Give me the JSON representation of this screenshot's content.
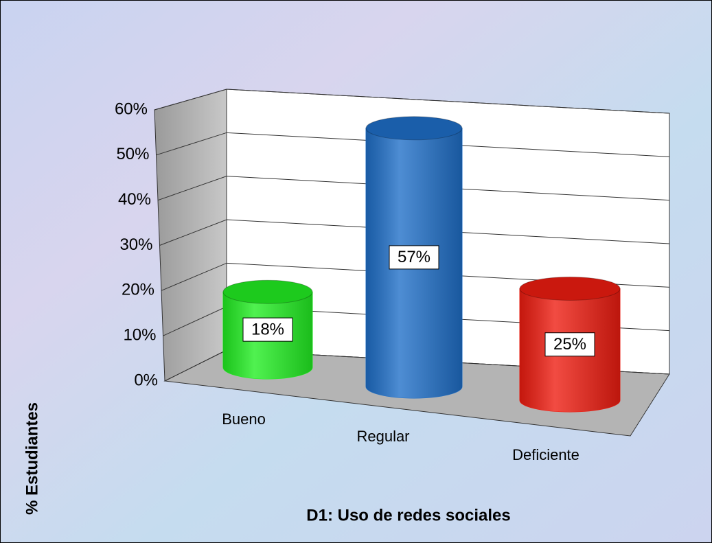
{
  "chart_data": {
    "type": "bar",
    "x_label": "D1: Uso de redes sociales",
    "y_label": "% Estudiantes",
    "categories": [
      "Bueno",
      "Regular",
      "Deficiente"
    ],
    "values": [
      18,
      57,
      25
    ],
    "value_labels": [
      "18%",
      "57%",
      "25%"
    ],
    "colors": [
      "#22ee22",
      "#1f6fc8",
      "#ee1c10"
    ],
    "ylim": [
      0,
      60
    ],
    "yticks": [
      {
        "value": 0,
        "label": "0%"
      },
      {
        "value": 10,
        "label": "10%"
      },
      {
        "value": 20,
        "label": "20%"
      },
      {
        "value": 30,
        "label": "30%"
      },
      {
        "value": 40,
        "label": "40%"
      },
      {
        "value": 50,
        "label": "50%"
      },
      {
        "value": 60,
        "label": "60%"
      }
    ],
    "grid": true
  }
}
